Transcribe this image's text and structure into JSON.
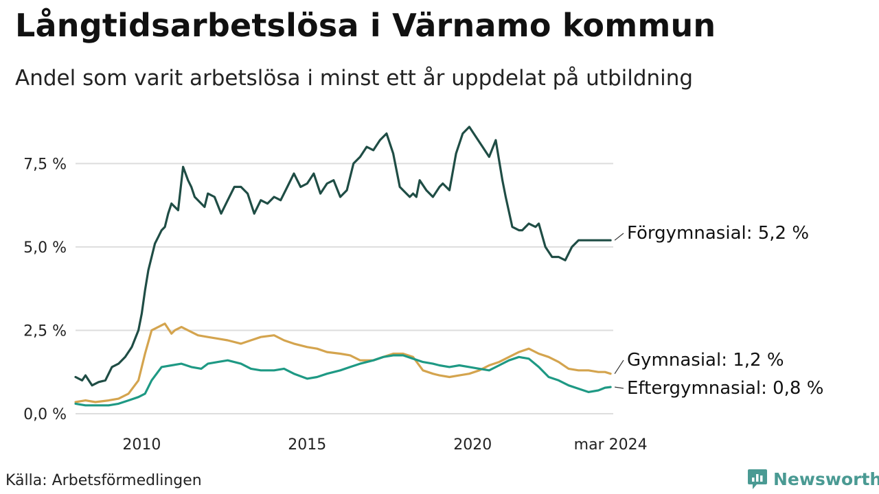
{
  "title": "Långtidsarbetslösa i Värnamo kommun",
  "subtitle": "Andel som varit arbetslösa i minst ett år uppdelat på utbildning",
  "source": "Källa: Arbetsförmedlingen",
  "brand": "Newsworthy",
  "colors": {
    "forgymnasial": "#1f4d45",
    "gymnasial": "#d4a44e",
    "eftergymnasial": "#1e9984",
    "grid": "#dddddd",
    "brand": "#4a9a93"
  },
  "chart_data": {
    "type": "line",
    "title": "Långtidsarbetslösa i Värnamo kommun",
    "subtitle": "Andel som varit arbetslösa i minst ett år uppdelat på utbildning",
    "xlabel": "",
    "ylabel": "",
    "xlim": [
      2008.0,
      2024.25
    ],
    "ylim": [
      0,
      8.7
    ],
    "yticks": [
      {
        "value": 0,
        "label": "0,0 %"
      },
      {
        "value": 2.5,
        "label": "2,5 %"
      },
      {
        "value": 5.0,
        "label": "5,0 %"
      },
      {
        "value": 7.5,
        "label": "7,5 %"
      }
    ],
    "xticks": [
      {
        "value": 2010,
        "label": "2010"
      },
      {
        "value": 2015,
        "label": "2015"
      },
      {
        "value": 2020,
        "label": "2020"
      },
      {
        "value": 2024.17,
        "label": "mar 2024"
      }
    ],
    "grid": true,
    "series": [
      {
        "name": "Förgymnasial",
        "label": "Förgymnasial: 5,2 %",
        "color_key": "forgymnasial",
        "x": [
          2008.0,
          2008.2,
          2008.3,
          2008.5,
          2008.7,
          2008.9,
          2009.1,
          2009.3,
          2009.5,
          2009.7,
          2009.9,
          2010.0,
          2010.1,
          2010.2,
          2010.4,
          2010.5,
          2010.6,
          2010.7,
          2010.8,
          2010.9,
          2011.0,
          2011.1,
          2011.25,
          2011.4,
          2011.5,
          2011.6,
          2011.8,
          2011.9,
          2012.0,
          2012.2,
          2012.4,
          2012.6,
          2012.8,
          2013.0,
          2013.2,
          2013.4,
          2013.6,
          2013.8,
          2014.0,
          2014.2,
          2014.4,
          2014.6,
          2014.8,
          2015.0,
          2015.2,
          2015.4,
          2015.6,
          2015.8,
          2016.0,
          2016.2,
          2016.4,
          2016.6,
          2016.8,
          2017.0,
          2017.2,
          2017.4,
          2017.6,
          2017.8,
          2018.0,
          2018.1,
          2018.2,
          2018.3,
          2018.4,
          2018.6,
          2018.8,
          2019.0,
          2019.1,
          2019.3,
          2019.5,
          2019.7,
          2019.9,
          2020.1,
          2020.3,
          2020.5,
          2020.7,
          2020.9,
          2021.0,
          2021.2,
          2021.4,
          2021.5,
          2021.7,
          2021.9,
          2022.0,
          2022.2,
          2022.4,
          2022.6,
          2022.8,
          2023.0,
          2023.2,
          2023.4,
          2023.5,
          2023.7,
          2023.9,
          2024.0,
          2024.17
        ],
        "values": [
          1.1,
          1.0,
          1.15,
          0.85,
          0.95,
          1.0,
          1.4,
          1.5,
          1.7,
          2.0,
          2.5,
          3.0,
          3.7,
          4.3,
          5.1,
          5.3,
          5.5,
          5.6,
          6.0,
          6.3,
          6.2,
          6.1,
          7.4,
          7.0,
          6.8,
          6.5,
          6.3,
          6.2,
          6.6,
          6.5,
          6.0,
          6.4,
          6.8,
          6.8,
          6.6,
          6.0,
          6.4,
          6.3,
          6.5,
          6.4,
          6.8,
          7.2,
          6.8,
          6.9,
          7.2,
          6.6,
          6.9,
          7.0,
          6.5,
          6.7,
          7.5,
          7.7,
          8.0,
          7.9,
          8.2,
          8.4,
          7.8,
          6.8,
          6.6,
          6.5,
          6.6,
          6.5,
          7.0,
          6.7,
          6.5,
          6.8,
          6.9,
          6.7,
          7.8,
          8.4,
          8.6,
          8.3,
          8.0,
          7.7,
          8.2,
          7.0,
          6.5,
          5.6,
          5.5,
          5.5,
          5.7,
          5.6,
          5.7,
          5.0,
          4.7,
          4.7,
          4.6,
          5.0,
          5.2,
          5.2,
          5.2,
          5.2,
          5.2,
          5.2,
          5.2
        ]
      },
      {
        "name": "Gymnasial",
        "label": "Gymnasial: 1,2 %",
        "color_key": "gymnasial",
        "x": [
          2008.0,
          2008.3,
          2008.6,
          2009.0,
          2009.3,
          2009.6,
          2009.9,
          2010.1,
          2010.3,
          2010.5,
          2010.7,
          2010.9,
          2011.0,
          2011.2,
          2011.4,
          2011.7,
          2012.0,
          2012.3,
          2012.6,
          2013.0,
          2013.3,
          2013.6,
          2014.0,
          2014.3,
          2014.6,
          2015.0,
          2015.3,
          2015.6,
          2016.0,
          2016.3,
          2016.6,
          2017.0,
          2017.3,
          2017.6,
          2017.9,
          2018.2,
          2018.5,
          2018.8,
          2019.0,
          2019.3,
          2019.6,
          2019.9,
          2020.2,
          2020.5,
          2020.8,
          2021.1,
          2021.4,
          2021.7,
          2022.0,
          2022.3,
          2022.6,
          2022.9,
          2023.2,
          2023.5,
          2023.8,
          2024.0,
          2024.17
        ],
        "values": [
          0.35,
          0.4,
          0.35,
          0.4,
          0.45,
          0.6,
          1.0,
          1.8,
          2.5,
          2.6,
          2.7,
          2.4,
          2.5,
          2.6,
          2.5,
          2.35,
          2.3,
          2.25,
          2.2,
          2.1,
          2.2,
          2.3,
          2.35,
          2.2,
          2.1,
          2.0,
          1.95,
          1.85,
          1.8,
          1.75,
          1.6,
          1.6,
          1.7,
          1.8,
          1.8,
          1.7,
          1.3,
          1.2,
          1.15,
          1.1,
          1.15,
          1.2,
          1.3,
          1.45,
          1.55,
          1.7,
          1.85,
          1.95,
          1.8,
          1.7,
          1.55,
          1.35,
          1.3,
          1.3,
          1.25,
          1.25,
          1.2
        ]
      },
      {
        "name": "Eftergymnasial",
        "label": "Eftergymnasial: 0,8 %",
        "color_key": "eftergymnasial",
        "x": [
          2008.0,
          2008.3,
          2008.6,
          2009.0,
          2009.3,
          2009.6,
          2009.9,
          2010.1,
          2010.3,
          2010.6,
          2010.9,
          2011.2,
          2011.5,
          2011.8,
          2012.0,
          2012.3,
          2012.6,
          2013.0,
          2013.3,
          2013.6,
          2014.0,
          2014.3,
          2014.6,
          2015.0,
          2015.3,
          2015.6,
          2016.0,
          2016.3,
          2016.6,
          2017.0,
          2017.3,
          2017.6,
          2017.9,
          2018.2,
          2018.5,
          2018.8,
          2019.0,
          2019.3,
          2019.6,
          2019.9,
          2020.2,
          2020.5,
          2020.8,
          2021.1,
          2021.4,
          2021.7,
          2022.0,
          2022.3,
          2022.6,
          2022.9,
          2023.2,
          2023.5,
          2023.8,
          2024.0,
          2024.17
        ],
        "values": [
          0.3,
          0.25,
          0.25,
          0.25,
          0.3,
          0.4,
          0.5,
          0.6,
          1.0,
          1.4,
          1.45,
          1.5,
          1.4,
          1.35,
          1.5,
          1.55,
          1.6,
          1.5,
          1.35,
          1.3,
          1.3,
          1.35,
          1.2,
          1.05,
          1.1,
          1.2,
          1.3,
          1.4,
          1.5,
          1.6,
          1.7,
          1.75,
          1.75,
          1.65,
          1.55,
          1.5,
          1.45,
          1.4,
          1.45,
          1.4,
          1.35,
          1.3,
          1.45,
          1.6,
          1.7,
          1.65,
          1.4,
          1.1,
          1.0,
          0.85,
          0.75,
          0.65,
          0.7,
          0.78,
          0.8
        ]
      }
    ]
  }
}
